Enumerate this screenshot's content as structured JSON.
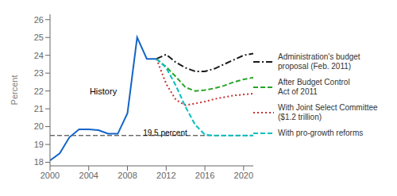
{
  "chart_data": {
    "type": "line",
    "ylabel": "Percent",
    "xlim": [
      2000,
      2021
    ],
    "ylim": [
      17.8,
      26.3
    ],
    "xticks": [
      2000,
      2004,
      2008,
      2012,
      2016,
      2020
    ],
    "yticks": [
      18,
      19,
      20,
      21,
      22,
      23,
      24,
      25,
      26
    ],
    "legend": "right",
    "x": [
      2000,
      2001,
      2002,
      2003,
      2004,
      2005,
      2006,
      2007,
      2008,
      2009,
      2010,
      2011,
      2012,
      2013,
      2014,
      2015,
      2016,
      2017,
      2018,
      2019,
      2020,
      2021
    ],
    "series": [
      {
        "name": "History",
        "color": "#1464c8",
        "line_style": "solid",
        "label_position": {
          "x": 2005.5,
          "y": 22.0
        },
        "values": [
          18.1,
          18.5,
          19.4,
          19.85,
          19.85,
          19.8,
          19.6,
          19.6,
          20.75,
          25.0,
          23.8,
          23.8,
          null,
          null,
          null,
          null,
          null,
          null,
          null,
          null,
          null,
          null
        ]
      },
      {
        "name": "Administration's budget\nproposal (Feb. 2011)",
        "color": "#1a1a1a",
        "line_style": "dashdot",
        "values": [
          null,
          null,
          null,
          null,
          null,
          null,
          null,
          null,
          null,
          null,
          null,
          23.8,
          24.05,
          23.6,
          23.3,
          23.1,
          23.1,
          23.25,
          23.5,
          23.75,
          24.0,
          24.1
        ]
      },
      {
        "name": "After Budget Control\nAct of 2011",
        "color": "#28a428",
        "line_style": "dashed",
        "values": [
          null,
          null,
          null,
          null,
          null,
          null,
          null,
          null,
          null,
          null,
          null,
          23.8,
          23.35,
          22.8,
          22.2,
          22.0,
          22.05,
          22.15,
          22.3,
          22.5,
          22.65,
          22.75
        ]
      },
      {
        "name": "With Joint Select Committee\n($1.2 trillion)",
        "color": "#c83232",
        "line_style": "dotted",
        "values": [
          null,
          null,
          null,
          null,
          null,
          null,
          null,
          null,
          null,
          null,
          null,
          23.8,
          22.4,
          21.5,
          21.2,
          21.3,
          21.4,
          21.55,
          21.65,
          21.75,
          21.8,
          21.85
        ]
      },
      {
        "name": "With pro-growth reforms",
        "color": "#00c0c0",
        "line_style": "dashed",
        "values": [
          null,
          null,
          null,
          null,
          null,
          null,
          null,
          null,
          null,
          null,
          null,
          23.8,
          23.3,
          22.3,
          21.1,
          20.1,
          19.55,
          19.5,
          19.5,
          19.5,
          19.5,
          19.5
        ]
      }
    ],
    "reference_line": {
      "y": 19.5,
      "label": "19.5 percent",
      "label_x": 2009.2,
      "label_y": 19.65,
      "color": "#2a2a2a",
      "line_style": "dashed"
    }
  }
}
